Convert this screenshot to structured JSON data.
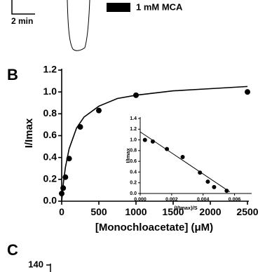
{
  "panel_a": {
    "scale_bar": "2 min",
    "legend": "1 mM MCA"
  },
  "panel_labels": [
    "B",
    "C"
  ],
  "panel_c": {
    "y_tick_label": "140"
  },
  "chart_data": [
    {
      "type": "scatter",
      "x_label": "[Monochloacetate] (μM)",
      "y_label": "I/Imax",
      "xlim": [
        0,
        2500
      ],
      "ylim": [
        0,
        1.2
      ],
      "xticks": [
        0,
        500,
        1000,
        1500,
        2000,
        2500
      ],
      "yticks": [
        {
          "value": 0,
          "label": "0.0"
        },
        0.2,
        0.4,
        0.6,
        0.8,
        {
          "value": 1,
          "label": "1.0"
        },
        1.2
      ],
      "series": [
        {
          "style": "markers",
          "color": "#000000",
          "x": [
            0,
            20,
            50,
            100,
            250,
            500,
            1000,
            2500
          ],
          "values": [
            0.07,
            0.12,
            0.22,
            0.39,
            0.68,
            0.83,
            0.97,
            1.0
          ]
        },
        {
          "style": "line",
          "color": "#000000",
          "x": [
            0,
            25,
            50,
            100,
            200,
            300,
            500,
            750,
            1000,
            1500,
            2000,
            2500
          ],
          "values": [
            0,
            0.18,
            0.31,
            0.48,
            0.67,
            0.77,
            0.87,
            0.94,
            0.97,
            1.01,
            1.03,
            1.05
          ]
        }
      ]
    },
    {
      "type": "scatter",
      "x_label": "(I/Imax)/S",
      "y_label": "I/Imax",
      "xlim": [
        0,
        0.007
      ],
      "ylim": [
        0,
        1.4
      ],
      "xticks": [
        {
          "value": 0,
          "label": "0.000"
        },
        {
          "value": 0.002,
          "label": "0.002"
        },
        {
          "value": 0.004,
          "label": "0.004"
        },
        {
          "value": 0.006,
          "label": "0.006"
        }
      ],
      "yticks": [
        {
          "value": 0,
          "label": "0.0"
        },
        0.2,
        0.4,
        0.6,
        0.8,
        {
          "value": 1,
          "label": "1.0"
        },
        1.2,
        1.4
      ],
      "series": [
        {
          "style": "markers",
          "color": "#000000",
          "x": [
            0.0003,
            0.0008,
            0.0017,
            0.0027,
            0.0038,
            0.0043,
            0.0047,
            0.0055
          ],
          "values": [
            1.0,
            0.97,
            0.83,
            0.68,
            0.39,
            0.22,
            0.12,
            0.05
          ]
        },
        {
          "style": "line",
          "color": "#000000",
          "x": [
            0,
            0.0057
          ],
          "values": [
            1.15,
            0.03
          ]
        }
      ]
    }
  ]
}
